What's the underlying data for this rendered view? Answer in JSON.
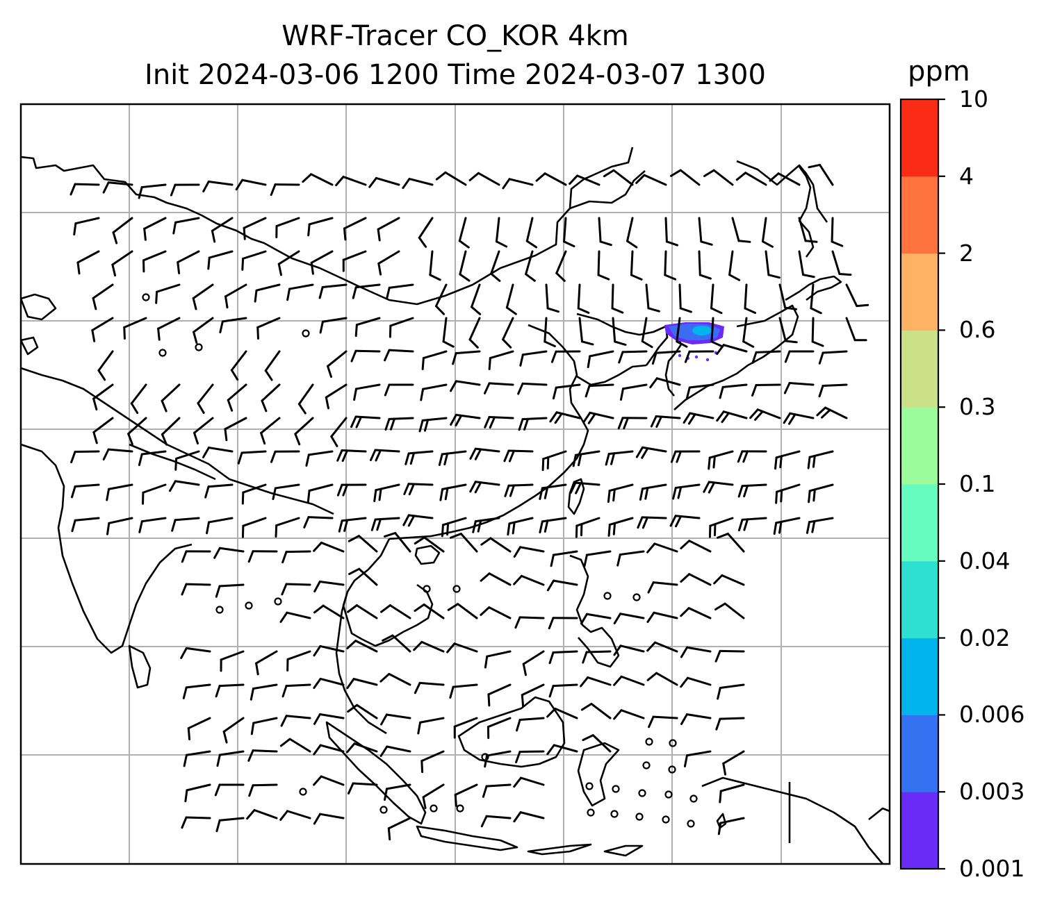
{
  "title_line1": "WRF-Tracer CO_KOR 4km",
  "title_line2": "Init 2024-03-06 1200 Time 2024-03-07 1300",
  "colorbar": {
    "unit": "ppm",
    "levels": [
      "0.001",
      "0.003",
      "0.006",
      "0.02",
      "0.04",
      "0.1",
      "0.3",
      "0.6",
      "2",
      "4",
      "10"
    ],
    "colors": [
      "#6a2bf7",
      "#3572f2",
      "#02b4ec",
      "#2ee0d2",
      "#66fbbf",
      "#9cfb9b",
      "#cce08a",
      "#fdb264",
      "#fe733e",
      "#fa2c15"
    ]
  },
  "map": {
    "grid": true,
    "wind_barbs": true,
    "tracer_plume_color": "#3a6cf4",
    "tracer_fringe_color": "#6a2bf7"
  }
}
